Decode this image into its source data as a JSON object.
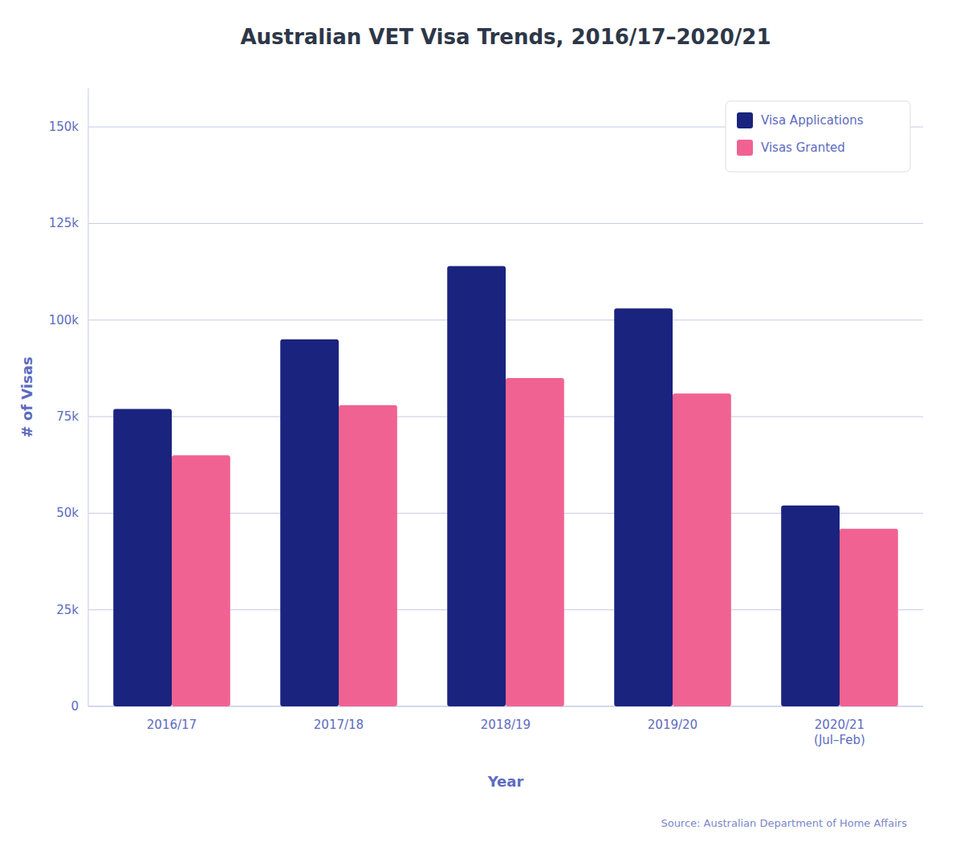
{
  "chart_data": {
    "type": "bar",
    "title": "Australian VET Visa Trends, 2016/17–2020/21",
    "categories": [
      "2016/17",
      "2017/18",
      "2018/19",
      "2019/20",
      "2020/21\n(Jul–Feb)"
    ],
    "series": [
      {
        "name": "Visa Applications",
        "color": "#1a237e",
        "values": [
          77000,
          95000,
          114000,
          103000,
          52000
        ]
      },
      {
        "name": "Visas Granted",
        "color": "#f06292",
        "values": [
          65000,
          78000,
          85000,
          81000,
          46000
        ]
      }
    ],
    "xlabel": "Year",
    "ylabel": "# of Visas",
    "ylim": [
      0,
      160000
    ],
    "yticks": [
      0,
      {
        "value": 25000,
        "label": "25k"
      },
      {
        "value": 50000,
        "label": "50k"
      },
      {
        "value": 75000,
        "label": "75k"
      },
      {
        "value": 100000,
        "label": "100k"
      },
      {
        "value": 125000,
        "label": "125k"
      },
      {
        "value": 150000,
        "label": "150k"
      }
    ],
    "grid": true,
    "legend": "upper right",
    "annotations": [
      "Source: Australian Department of Home Affairs"
    ]
  }
}
